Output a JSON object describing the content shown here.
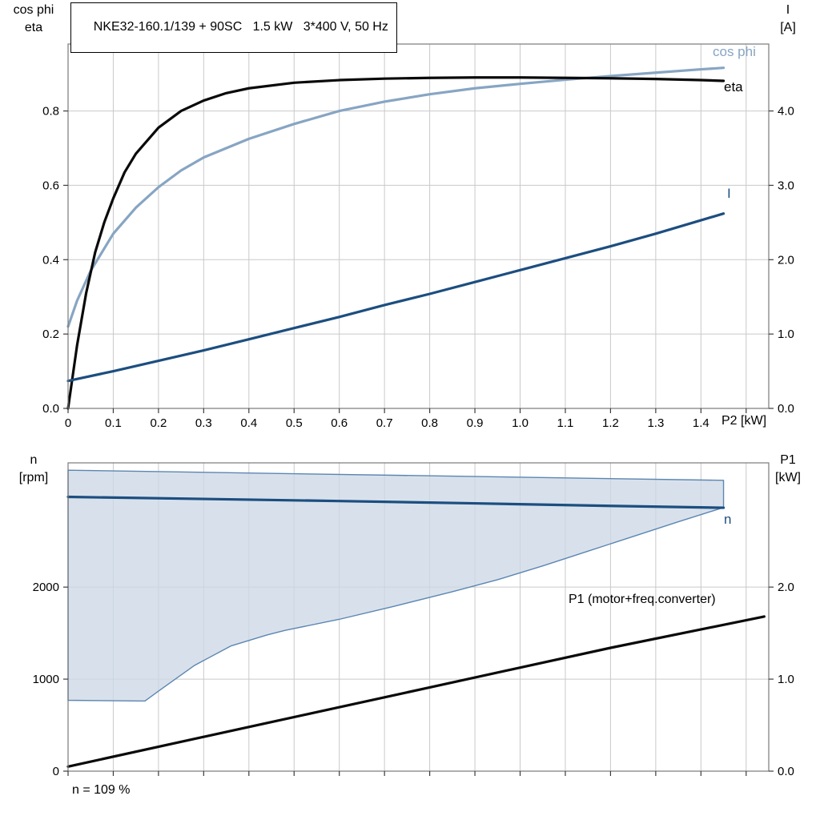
{
  "note": "n = 109 %",
  "chart_data": [
    {
      "type": "line",
      "title": "NKE32-160.1/139 + 90SC   1.5 kW   3*400 V, 50 Hz",
      "xlabel": "P2 [kW]",
      "ylabel_left": [
        "cos phi",
        "eta"
      ],
      "ylabel_right": [
        "I",
        "[A]"
      ],
      "xlim": [
        0,
        1.55
      ],
      "ylim_left": [
        0,
        0.98
      ],
      "ylim_right": [
        0,
        4.9
      ],
      "grid": true,
      "legend_position": "inline-labels",
      "xticks": [
        {
          "v": 0,
          "l": "0"
        },
        {
          "v": 0.1,
          "l": "0.1"
        },
        {
          "v": 0.2,
          "l": "0.2"
        },
        {
          "v": 0.3,
          "l": "0.3"
        },
        {
          "v": 0.4,
          "l": "0.4"
        },
        {
          "v": 0.5,
          "l": "0.5"
        },
        {
          "v": 0.6,
          "l": "0.6"
        },
        {
          "v": 0.7,
          "l": "0.7"
        },
        {
          "v": 0.8,
          "l": "0.8"
        },
        {
          "v": 0.9,
          "l": "0.9"
        },
        {
          "v": 1.0,
          "l": "1.0"
        },
        {
          "v": 1.1,
          "l": "1.1"
        },
        {
          "v": 1.2,
          "l": "1.2"
        },
        {
          "v": 1.3,
          "l": "1.3"
        },
        {
          "v": 1.4,
          "l": "1.4"
        },
        {
          "v": 1.5,
          "l": ""
        }
      ],
      "yticks_left": [
        {
          "v": 0,
          "l": "0.0"
        },
        {
          "v": 0.2,
          "l": "0.2"
        },
        {
          "v": 0.4,
          "l": "0.4"
        },
        {
          "v": 0.6,
          "l": "0.6"
        },
        {
          "v": 0.8,
          "l": "0.8"
        }
      ],
      "yticks_right": [
        {
          "v": 0,
          "l": "0.0"
        },
        {
          "v": 1,
          "l": "1.0"
        },
        {
          "v": 2,
          "l": "2.0"
        },
        {
          "v": 3,
          "l": "3.0"
        },
        {
          "v": 4,
          "l": "4.0"
        }
      ],
      "series": [
        {
          "id": "cos_phi",
          "name": "cos phi",
          "axis": "left",
          "color": "#87a5c3",
          "width": 3.2,
          "x": [
            0,
            0.02,
            0.05,
            0.1,
            0.15,
            0.2,
            0.25,
            0.3,
            0.4,
            0.5,
            0.6,
            0.7,
            0.8,
            0.9,
            1.0,
            1.1,
            1.2,
            1.3,
            1.4,
            1.45
          ],
          "y": [
            0.22,
            0.29,
            0.37,
            0.47,
            0.54,
            0.595,
            0.64,
            0.675,
            0.725,
            0.765,
            0.8,
            0.825,
            0.845,
            0.861,
            0.873,
            0.884,
            0.894,
            0.903,
            0.912,
            0.916
          ]
        },
        {
          "id": "eta",
          "name": "eta",
          "axis": "left",
          "color": "#0a0a0a",
          "width": 3.2,
          "x": [
            0,
            0.02,
            0.04,
            0.06,
            0.08,
            0.1,
            0.125,
            0.15,
            0.2,
            0.25,
            0.3,
            0.35,
            0.4,
            0.5,
            0.6,
            0.7,
            0.8,
            0.9,
            1.0,
            1.1,
            1.2,
            1.3,
            1.4,
            1.45
          ],
          "y": [
            0.0,
            0.17,
            0.31,
            0.42,
            0.5,
            0.565,
            0.635,
            0.685,
            0.755,
            0.8,
            0.828,
            0.848,
            0.861,
            0.876,
            0.883,
            0.887,
            0.889,
            0.89,
            0.89,
            0.889,
            0.888,
            0.886,
            0.883,
            0.881
          ]
        },
        {
          "id": "current",
          "name": "I",
          "axis": "right",
          "color": "#1c4e80",
          "width": 3.2,
          "x": [
            0,
            0.1,
            0.2,
            0.3,
            0.4,
            0.5,
            0.6,
            0.7,
            0.8,
            0.9,
            1.0,
            1.1,
            1.2,
            1.3,
            1.4,
            1.45
          ],
          "y": [
            0.37,
            0.5,
            0.64,
            0.78,
            0.93,
            1.08,
            1.23,
            1.39,
            1.54,
            1.7,
            1.86,
            2.02,
            2.18,
            2.35,
            2.53,
            2.62
          ]
        }
      ]
    },
    {
      "type": "line",
      "title": "",
      "xlabel": "",
      "ylabel_left": [
        "n",
        "[rpm]"
      ],
      "ylabel_right": [
        "P1",
        "[kW]"
      ],
      "xlim": [
        0,
        1.55
      ],
      "ylim_left": [
        0,
        3350
      ],
      "ylim_right": [
        0,
        3.35
      ],
      "grid": true,
      "xticks": [
        {
          "v": 0,
          "l": ""
        },
        {
          "v": 0.1,
          "l": ""
        },
        {
          "v": 0.2,
          "l": ""
        },
        {
          "v": 0.3,
          "l": ""
        },
        {
          "v": 0.4,
          "l": ""
        },
        {
          "v": 0.5,
          "l": ""
        },
        {
          "v": 0.6,
          "l": ""
        },
        {
          "v": 0.7,
          "l": ""
        },
        {
          "v": 0.8,
          "l": ""
        },
        {
          "v": 0.9,
          "l": ""
        },
        {
          "v": 1.0,
          "l": ""
        },
        {
          "v": 1.1,
          "l": ""
        },
        {
          "v": 1.2,
          "l": ""
        },
        {
          "v": 1.3,
          "l": ""
        },
        {
          "v": 1.4,
          "l": ""
        },
        {
          "v": 1.5,
          "l": ""
        }
      ],
      "yticks_left": [
        {
          "v": 0,
          "l": "0"
        },
        {
          "v": 1000,
          "l": "1000"
        },
        {
          "v": 2000,
          "l": "2000"
        }
      ],
      "yticks_right": [
        {
          "v": 0,
          "l": "0.0"
        },
        {
          "v": 1,
          "l": "1.0"
        },
        {
          "v": 2,
          "l": "2.0"
        }
      ],
      "band": {
        "name": "speed-operating-range",
        "fill": "#cdd9e6",
        "stroke": "#5c86b2",
        "upper": {
          "x": [
            0,
            1.45
          ],
          "y": [
            3270,
            3160
          ]
        },
        "lower": {
          "x": [
            0,
            0.17,
            0.2,
            0.28,
            0.36,
            0.44,
            0.48,
            0.6,
            0.72,
            0.85,
            0.95,
            1.05,
            1.15,
            1.25,
            1.35,
            1.45
          ],
          "y": [
            770,
            762,
            870,
            1150,
            1360,
            1480,
            1530,
            1650,
            1790,
            1950,
            2080,
            2230,
            2390,
            2550,
            2710,
            2865
          ]
        }
      },
      "series": [
        {
          "id": "speed",
          "name": "n",
          "axis": "left",
          "color": "#1c4e80",
          "width": 3.2,
          "x": [
            0,
            0.3,
            0.6,
            0.9,
            1.2,
            1.45
          ],
          "y": [
            2980,
            2958,
            2935,
            2910,
            2882,
            2862
          ]
        },
        {
          "id": "p1",
          "name": "P1 (motor+freq.converter)",
          "axis": "right",
          "color": "#0a0a0a",
          "width": 3.2,
          "x": [
            0,
            0.4,
            0.8,
            1.2,
            1.54
          ],
          "y": [
            0.05,
            0.48,
            0.91,
            1.34,
            1.68
          ]
        }
      ]
    }
  ]
}
